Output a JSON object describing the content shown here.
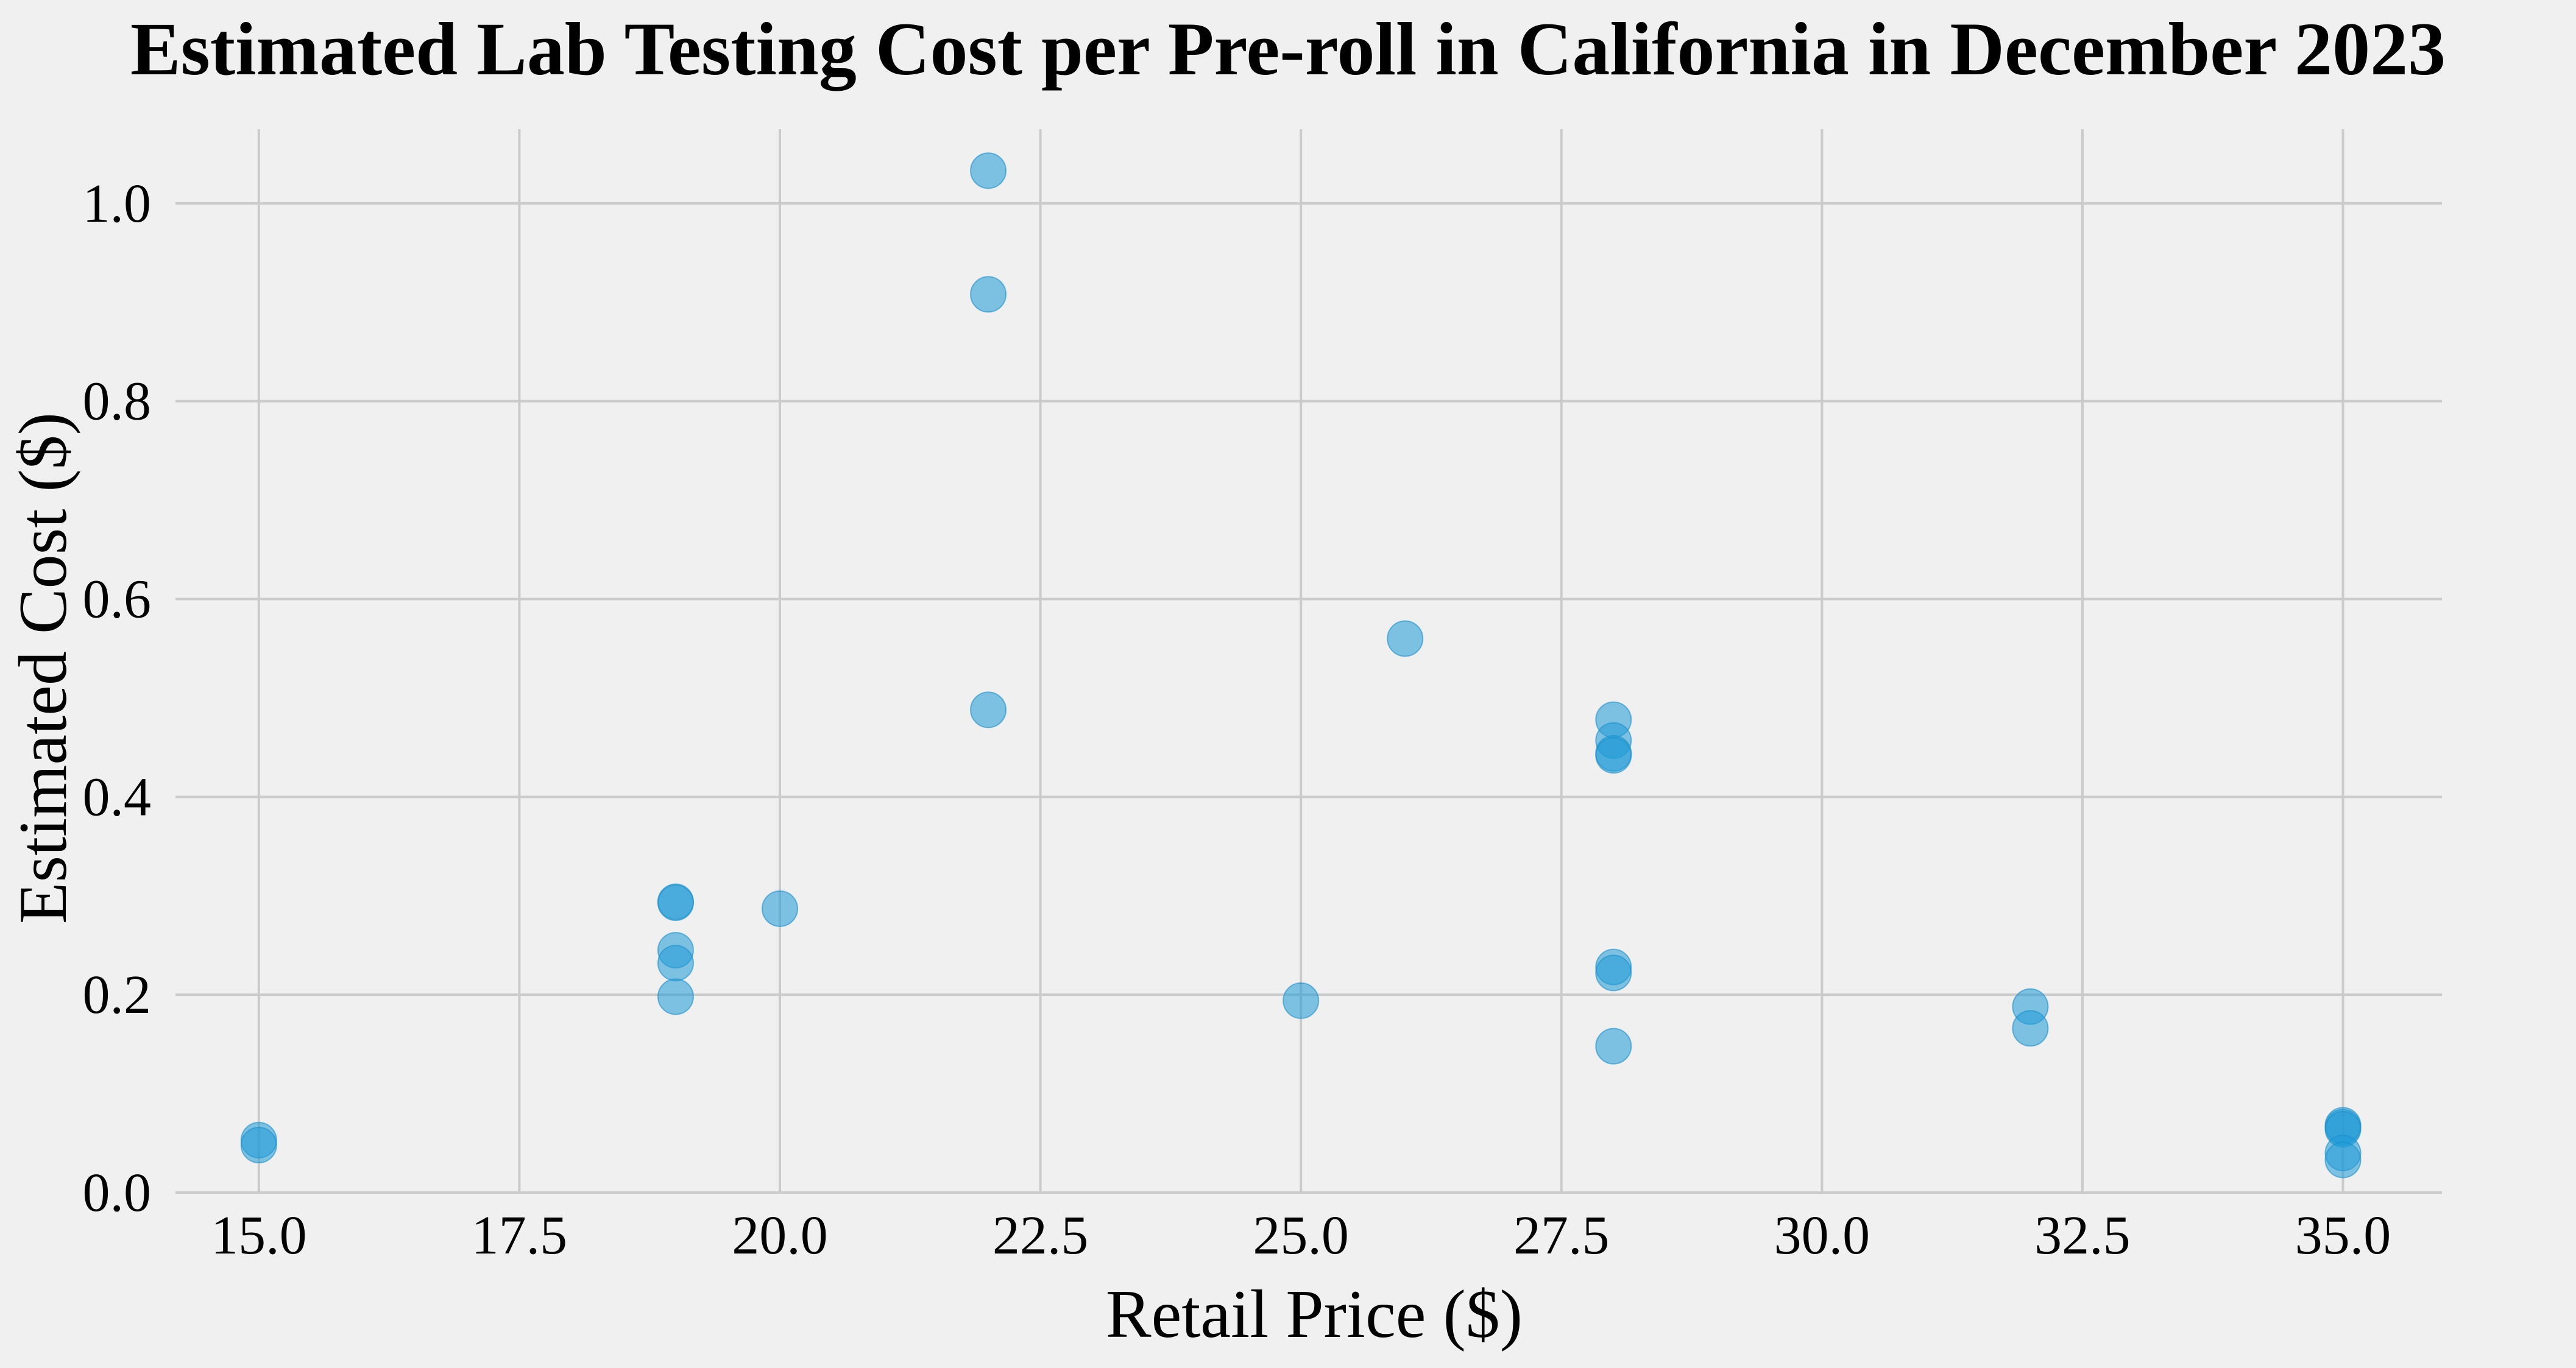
{
  "chart_data": {
    "type": "scatter",
    "title": "Estimated Lab Testing Cost per Pre-roll in California in December 2023",
    "xlabel": "Retail Price ($)",
    "ylabel": "Estimated Cost ($)",
    "xlim": [
      14.2,
      35.95
    ],
    "ylim": [
      0.0,
      1.075
    ],
    "xticks": [
      15.0,
      17.5,
      20.0,
      22.5,
      25.0,
      27.5,
      30.0,
      32.5,
      35.0
    ],
    "yticks": [
      0.0,
      0.2,
      0.4,
      0.6,
      0.8,
      1.0
    ],
    "xtick_labels": [
      "15.0",
      "17.5",
      "20.0",
      "22.5",
      "25.0",
      "27.5",
      "30.0",
      "32.5",
      "35.0"
    ],
    "ytick_labels": [
      "0.0",
      "0.2",
      "0.4",
      "0.6",
      "0.8",
      "1.0"
    ],
    "grid": true,
    "color": "#1f9bd7",
    "points": [
      {
        "x": 15.0,
        "y": 0.053
      },
      {
        "x": 15.0,
        "y": 0.048
      },
      {
        "x": 19.0,
        "y": 0.294
      },
      {
        "x": 19.0,
        "y": 0.293
      },
      {
        "x": 19.0,
        "y": 0.245
      },
      {
        "x": 19.0,
        "y": 0.232
      },
      {
        "x": 19.0,
        "y": 0.198
      },
      {
        "x": 20.0,
        "y": 0.287
      },
      {
        "x": 22.0,
        "y": 1.033
      },
      {
        "x": 22.0,
        "y": 0.908
      },
      {
        "x": 22.0,
        "y": 0.488
      },
      {
        "x": 25.0,
        "y": 0.194
      },
      {
        "x": 26.0,
        "y": 0.56
      },
      {
        "x": 28.0,
        "y": 0.478
      },
      {
        "x": 28.0,
        "y": 0.457
      },
      {
        "x": 28.0,
        "y": 0.444
      },
      {
        "x": 28.0,
        "y": 0.442
      },
      {
        "x": 28.0,
        "y": 0.228
      },
      {
        "x": 28.0,
        "y": 0.222
      },
      {
        "x": 28.0,
        "y": 0.148
      },
      {
        "x": 32.0,
        "y": 0.188
      },
      {
        "x": 32.0,
        "y": 0.166
      },
      {
        "x": 35.0,
        "y": 0.068
      },
      {
        "x": 35.0,
        "y": 0.066
      },
      {
        "x": 35.0,
        "y": 0.064
      },
      {
        "x": 35.0,
        "y": 0.04
      },
      {
        "x": 35.0,
        "y": 0.033
      }
    ]
  }
}
